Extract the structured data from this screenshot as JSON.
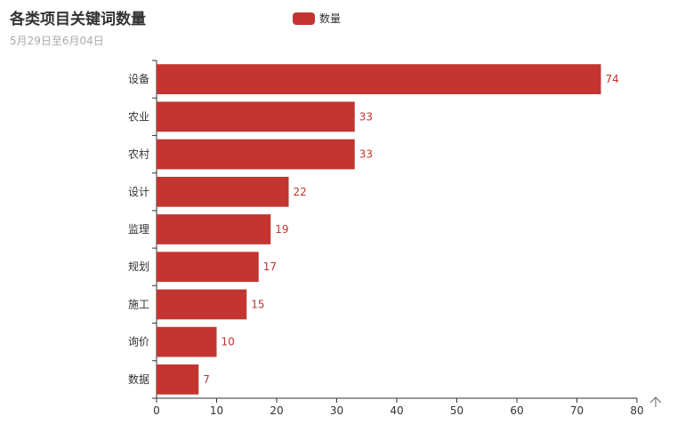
{
  "chart_data": {
    "type": "bar",
    "orientation": "horizontal",
    "title": "各类项目关键词数量",
    "subtitle": "5月29日至6月04日",
    "categories": [
      "设备",
      "农业",
      "农村",
      "设计",
      "监理",
      "规划",
      "施工",
      "询价",
      "数据"
    ],
    "series": [
      {
        "name": "数量",
        "values": [
          74,
          33,
          33,
          22,
          19,
          17,
          15,
          10,
          7
        ]
      }
    ],
    "xlim": [
      0,
      80
    ],
    "xticks": [
      0,
      10,
      20,
      30,
      40,
      50,
      60,
      70,
      80
    ],
    "grid": false,
    "legend_position": "top-center",
    "data_labels": true,
    "colors": {
      "bar": "#c23531",
      "axis": "#333333",
      "label": "#c23531"
    }
  },
  "toolbar": {
    "icon": "back-to-top-icon"
  }
}
